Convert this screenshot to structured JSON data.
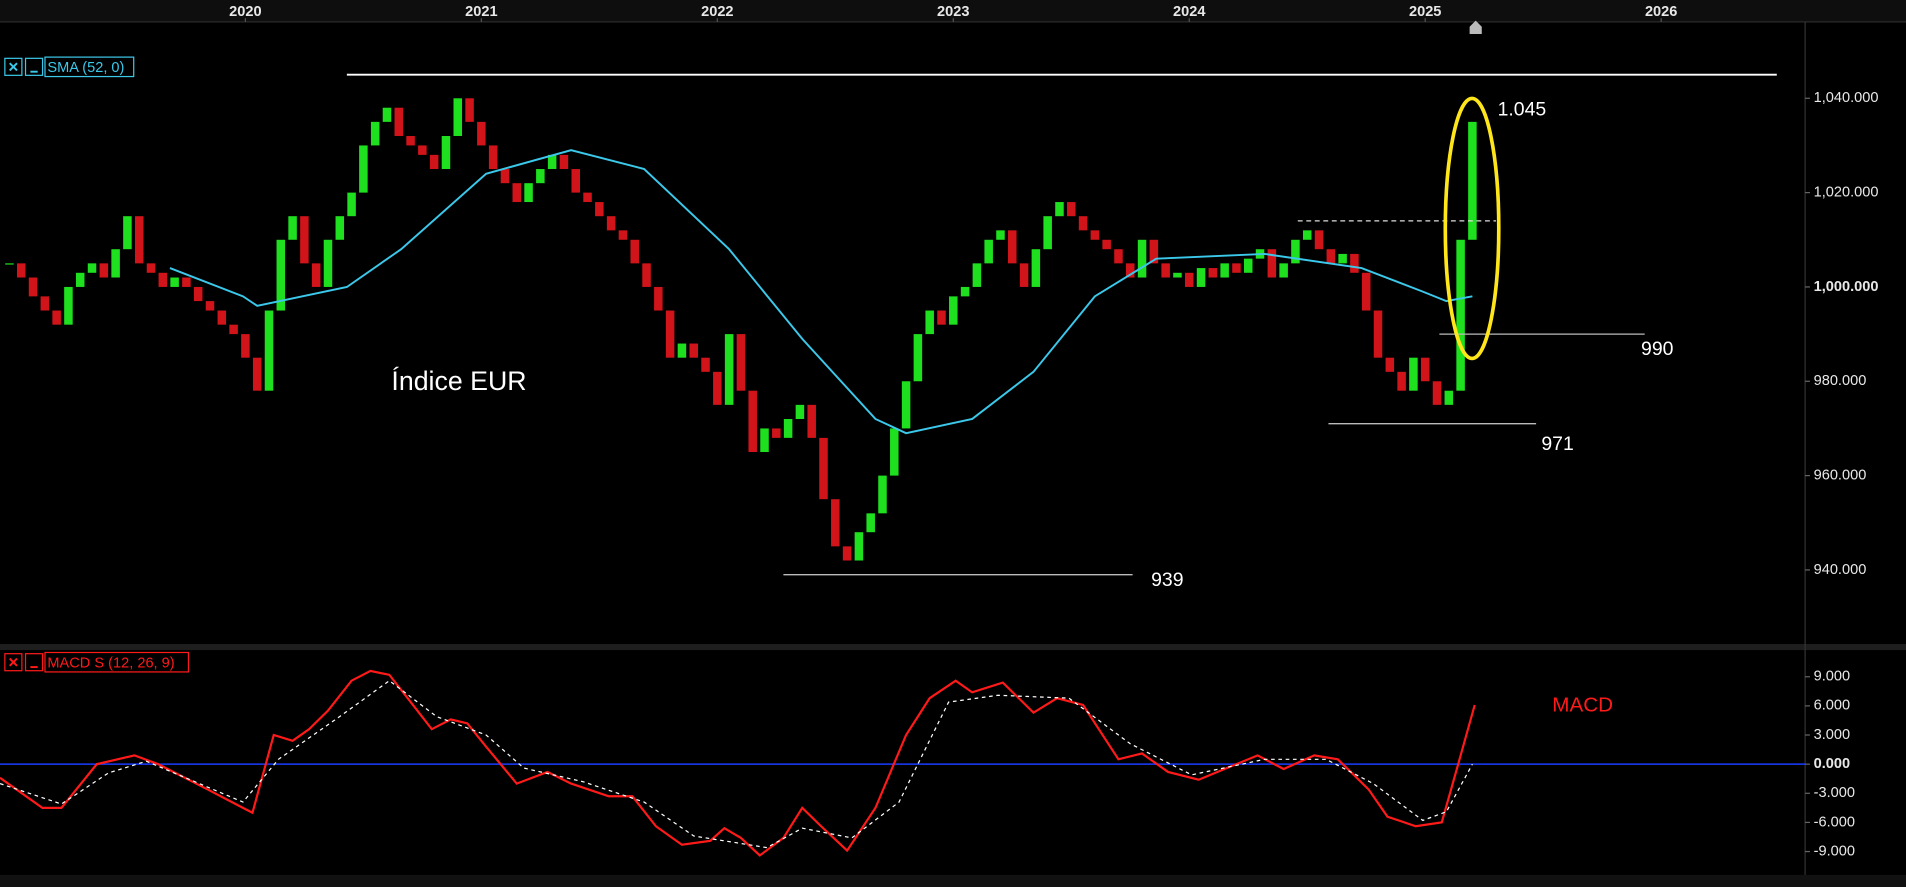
{
  "chart_data": [
    {
      "type": "candlestick",
      "title": "Índice EUR",
      "xlim": [
        2018.96,
        2026.61
      ],
      "xticks": [
        2020,
        2021,
        2022,
        2023,
        2024,
        2025,
        2026
      ],
      "ylim": [
        924.3,
        1056.2
      ],
      "yticks": [
        {
          "value": 1040,
          "label": "1,040.000"
        },
        {
          "value": 1020,
          "label": "1,020.000"
        },
        {
          "value": 1000,
          "label": "1,000.000"
        },
        {
          "value": 980,
          "label": "980.000"
        },
        {
          "value": 960,
          "label": "960.000"
        },
        {
          "value": 940,
          "label": "940.000"
        }
      ],
      "candles": {
        "up_color": "#1fe01f",
        "down_color": "#d0141a",
        "x": [
          2019,
          2019.05,
          2019.1,
          2019.15,
          2019.2,
          2019.25,
          2019.3,
          2019.35,
          2019.4,
          2019.45,
          2019.5,
          2019.55,
          2019.6,
          2019.65,
          2019.7,
          2019.75,
          2019.8,
          2019.85,
          2019.9,
          2019.95,
          2020,
          2020.05,
          2020.1,
          2020.15,
          2020.2,
          2020.25,
          2020.3,
          2020.35,
          2020.4,
          2020.45,
          2020.5,
          2020.55,
          2020.6,
          2020.65,
          2020.7,
          2020.75,
          2020.8,
          2020.85,
          2020.9,
          2020.95,
          2021,
          2021.05,
          2021.1,
          2021.15,
          2021.2,
          2021.25,
          2021.3,
          2021.35,
          2021.4,
          2021.45,
          2021.5,
          2021.55,
          2021.6,
          2021.65,
          2021.7,
          2021.75,
          2021.8,
          2021.85,
          2021.9,
          2021.95,
          2022,
          2022.05,
          2022.1,
          2022.15,
          2022.2,
          2022.25,
          2022.3,
          2022.35,
          2022.4,
          2022.45,
          2022.5,
          2022.55,
          2022.6,
          2022.65,
          2022.7,
          2022.75,
          2022.8,
          2022.85,
          2022.9,
          2022.95,
          2023,
          2023.05,
          2023.1,
          2023.15,
          2023.2,
          2023.25,
          2023.3,
          2023.35,
          2023.4,
          2023.45,
          2023.5,
          2023.55,
          2023.6,
          2023.65,
          2023.7,
          2023.75,
          2023.8,
          2023.85,
          2023.9,
          2023.95,
          2024,
          2024.05,
          2024.1,
          2024.15,
          2024.2,
          2024.25,
          2024.3,
          2024.35,
          2024.4,
          2024.45,
          2024.5,
          2024.55,
          2024.6,
          2024.65,
          2024.7,
          2024.75,
          2024.8,
          2024.85,
          2024.9,
          2024.95,
          2025,
          2025.05,
          2025.1,
          2025.15,
          2025.2
        ],
        "close": [
          1005,
          1002,
          998,
          995,
          992,
          1000,
          1003,
          1005,
          1002,
          1008,
          1015,
          1005,
          1003,
          1000,
          1002,
          1000,
          997,
          995,
          992,
          990,
          985,
          978,
          995,
          1010,
          1015,
          1005,
          1000,
          1010,
          1015,
          1020,
          1030,
          1035,
          1038,
          1032,
          1030,
          1028,
          1025,
          1032,
          1040,
          1035,
          1030,
          1025,
          1022,
          1018,
          1022,
          1025,
          1028,
          1025,
          1020,
          1018,
          1015,
          1012,
          1010,
          1005,
          1000,
          995,
          985,
          988,
          985,
          982,
          975,
          990,
          978,
          965,
          970,
          968,
          972,
          975,
          968,
          955,
          945,
          942,
          948,
          952,
          960,
          970,
          980,
          990,
          995,
          992,
          998,
          1000,
          1005,
          1010,
          1012,
          1005,
          1000,
          1008,
          1015,
          1018,
          1015,
          1012,
          1010,
          1008,
          1005,
          1002,
          1010,
          1005,
          1002,
          1003,
          1000,
          1004,
          1002,
          1005,
          1003,
          1006,
          1008,
          1002,
          1005,
          1010,
          1012,
          1008,
          1005,
          1007,
          1003,
          995,
          985,
          982,
          978,
          985,
          980,
          975,
          978,
          1010,
          1035
        ]
      },
      "series": [
        {
          "name": "SMA (52, 0)",
          "color": "#3cc8ea",
          "x": [
            2019.68,
            2019.99,
            2020.05,
            2020.43,
            2020.66,
            2021.02,
            2021.38,
            2021.69,
            2022.05,
            2022.36,
            2022.67,
            2022.8,
            2023.08,
            2023.34,
            2023.6,
            2023.86,
            2024.32,
            2024.73,
            2024.99,
            2025.09,
            2025.2
          ],
          "values": [
            1004,
            998,
            996,
            1000,
            1008,
            1024,
            1029,
            1025,
            1008,
            989,
            972,
            969,
            972,
            982,
            998,
            1006,
            1007,
            1004,
            999,
            997,
            998
          ]
        }
      ],
      "levels": [
        {
          "label": "1.045",
          "value": 1045,
          "x": [
            2020.43,
            2026.49
          ],
          "color": "#ffffff"
        },
        {
          "label": "990",
          "value": 990,
          "x": [
            2025.06,
            2025.93
          ],
          "color": "#bbbbbb"
        },
        {
          "label": "971",
          "value": 971,
          "x": [
            2024.59,
            2025.47
          ],
          "color": "#bbbbbb"
        },
        {
          "label": "939",
          "value": 939,
          "x": [
            2022.28,
            2023.76
          ],
          "color": "#bbbbbb"
        }
      ],
      "dashed_level": {
        "value": 1014,
        "x": [
          2024.46,
          2025.3
        ],
        "color": "#dddddd"
      }
    },
    {
      "type": "line",
      "annotation": "MACD",
      "ylim": [
        -11.4,
        11.75
      ],
      "yticks": [
        {
          "value": 9,
          "label": "9.000"
        },
        {
          "value": 6,
          "label": "6.000"
        },
        {
          "value": 3,
          "label": "3.000"
        },
        {
          "value": 0,
          "label": "0.000"
        },
        {
          "value": -3,
          "label": "-3.000"
        },
        {
          "value": -6,
          "label": "-6.000"
        },
        {
          "value": -9,
          "label": "-9.000"
        }
      ],
      "zero_line_color": "#1a3cff",
      "series": [
        {
          "name": "MACD S (12, 26, 9)",
          "color": "#ff1a1a",
          "x": [
            2018.96,
            2019.14,
            2019.22,
            2019.37,
            2019.53,
            2019.63,
            2019.84,
            2019.99,
            2020.03,
            2020.12,
            2020.2,
            2020.27,
            2020.35,
            2020.45,
            2020.53,
            2020.61,
            2020.71,
            2020.79,
            2020.87,
            2020.94,
            2021.02,
            2021.15,
            2021.28,
            2021.38,
            2021.54,
            2021.64,
            2021.74,
            2021.85,
            2021.97,
            2022.03,
            2022.1,
            2022.18,
            2022.28,
            2022.36,
            2022.44,
            2022.55,
            2022.67,
            2022.8,
            2022.9,
            2023.01,
            2023.08,
            2023.21,
            2023.34,
            2023.44,
            2023.55,
            2023.7,
            2023.8,
            2023.91,
            2024.04,
            2024.16,
            2024.29,
            2024.4,
            2024.53,
            2024.63,
            2024.76,
            2024.84,
            2024.96,
            2025.07,
            2025.14,
            2025.21
          ],
          "values": [
            -1.4,
            -4.5,
            -4.5,
            0,
            0.9,
            0,
            -2.6,
            -4.5,
            -5,
            3,
            2.4,
            3.6,
            5.5,
            8.6,
            9.6,
            9.2,
            6.1,
            3.6,
            4.6,
            4.2,
            1.8,
            -2,
            -0.8,
            -2,
            -3.3,
            -3.3,
            -6.4,
            -8.3,
            -7.9,
            -6.6,
            -7.6,
            -9.4,
            -7.6,
            -4.5,
            -6.4,
            -8.9,
            -4.5,
            3,
            6.8,
            8.6,
            7.4,
            8.4,
            5.3,
            6.8,
            6.1,
            0.5,
            1.1,
            -0.8,
            -1.6,
            -0.4,
            0.9,
            -0.5,
            0.9,
            0.5,
            -2.6,
            -5.4,
            -6.4,
            -6,
            0,
            6.1
          ]
        },
        {
          "color": "#ffffff",
          "dash": true,
          "x": [
            2018.96,
            2019.22,
            2019.42,
            2019.58,
            2019.99,
            2020.14,
            2020.4,
            2020.61,
            2020.81,
            2021.02,
            2021.18,
            2021.43,
            2021.69,
            2021.9,
            2022.21,
            2022.36,
            2022.57,
            2022.77,
            2022.98,
            2023.19,
            2023.49,
            2023.75,
            2024.01,
            2024.32,
            2024.58,
            2024.78,
            2024.99,
            2025.09,
            2025.2
          ],
          "values": [
            -2,
            -4.1,
            -0.9,
            0.3,
            -3.9,
            0.5,
            4.9,
            8.6,
            4.9,
            3,
            -0.4,
            -1.8,
            -3.9,
            -7.4,
            -8.6,
            -6.6,
            -7.6,
            -3.9,
            6.4,
            7.1,
            6.8,
            2.1,
            -1.1,
            0.5,
            0.5,
            -2,
            -5.8,
            -4.9,
            0
          ]
        }
      ]
    }
  ]
}
